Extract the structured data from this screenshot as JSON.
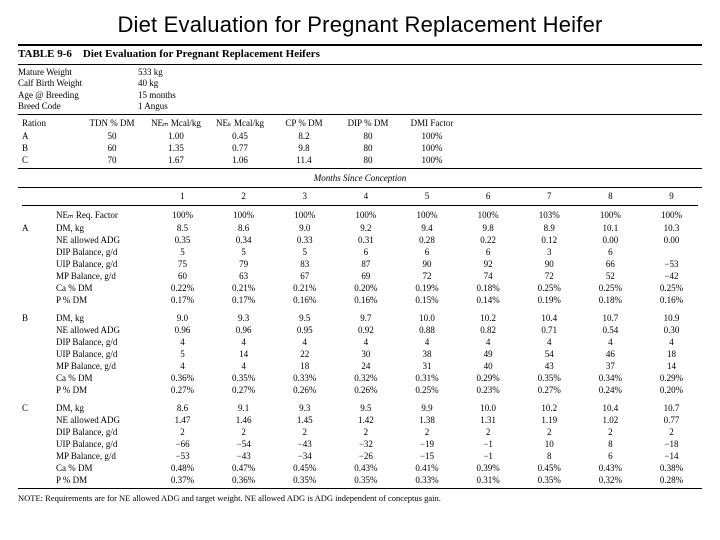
{
  "page_title": "Diet Evaluation for Pregnant Replacement Heifer",
  "table_caption": {
    "number": "TABLE 9-6",
    "text": "Diet Evaluation for Pregnant Replacement Heifers"
  },
  "meta": {
    "r0_label": "Mature Weight",
    "r0_val": "533 kg",
    "r1_label": "Calf Birth Weight",
    "r1_val": "40 kg",
    "r2_label": "Age @ Breeding",
    "r2_val": "15 months",
    "r3_label": "Breed Code",
    "r3_val": "1 Angus"
  },
  "ration_head": {
    "c0": "Ration",
    "c1": "TDN\n% DM",
    "c2": "NEₘ\nMcal/kg",
    "c3": "NEₖ\nMcal/kg",
    "c4": "CP\n% DM",
    "c5": "DIP\n% DM",
    "c6": "DMI\nFactor"
  },
  "rations": {
    "A": {
      "tdn": "50",
      "nem": "1.00",
      "neg": "0.45",
      "cp": "8.2",
      "dip": "80",
      "dmi": "100%"
    },
    "B": {
      "tdn": "60",
      "nem": "1.35",
      "neg": "0.77",
      "cp": "9.8",
      "dip": "80",
      "dmi": "100%"
    },
    "C": {
      "tdn": "70",
      "nem": "1.67",
      "neg": "1.06",
      "cp": "11.4",
      "dip": "80",
      "dmi": "100%"
    }
  },
  "months_header": "Months Since Conception",
  "month_cols": [
    "1",
    "2",
    "3",
    "4",
    "5",
    "6",
    "7",
    "8",
    "9"
  ],
  "nem_req_label": "NEₘ Req. Factor",
  "nem_req": [
    "100%",
    "100%",
    "100%",
    "100%",
    "100%",
    "100%",
    "103%",
    "100%",
    "100%"
  ],
  "row_labels": {
    "dm": "DM, kg",
    "adg": "NE allowed ADG",
    "dip": "DIP Balance, g/d",
    "uip": "UIP Balance, g/d",
    "mp": "MP Balance, g/d",
    "ca": "Ca % DM",
    "p": "P % DM"
  },
  "groups": {
    "A": {
      "dm": [
        "8.5",
        "8.6",
        "9.0",
        "9.2",
        "9.4",
        "9.8",
        "8.9",
        "10.1",
        "10.3"
      ],
      "adg": [
        "0.35",
        "0.34",
        "0.33",
        "0.31",
        "0.28",
        "0.22",
        "0.12",
        "0.00",
        "0.00"
      ],
      "dip": [
        "5",
        "5",
        "5",
        "6",
        "6",
        "6",
        "3",
        "6",
        ""
      ],
      "uip": [
        "75",
        "79",
        "83",
        "87",
        "90",
        "92",
        "90",
        "66",
        "−53"
      ],
      "mp": [
        "60",
        "63",
        "67",
        "69",
        "72",
        "74",
        "72",
        "52",
        "−42"
      ],
      "ca": [
        "0.22%",
        "0.21%",
        "0.21%",
        "0.20%",
        "0.19%",
        "0.18%",
        "0.25%",
        "0.25%",
        "0.25%"
      ],
      "p": [
        "0.17%",
        "0.17%",
        "0.16%",
        "0.16%",
        "0.15%",
        "0.14%",
        "0.19%",
        "0.18%",
        "0.16%"
      ]
    },
    "B": {
      "dm": [
        "9.0",
        "9.3",
        "9.5",
        "9.7",
        "10.0",
        "10.2",
        "10.4",
        "10.7",
        "10.9"
      ],
      "adg": [
        "0.96",
        "0.96",
        "0.95",
        "0.92",
        "0.88",
        "0.82",
        "0.71",
        "0.54",
        "0.30"
      ],
      "dip": [
        "4",
        "4",
        "4",
        "4",
        "4",
        "4",
        "4",
        "4",
        "4"
      ],
      "uip": [
        "5",
        "14",
        "22",
        "30",
        "38",
        "49",
        "54",
        "46",
        "18"
      ],
      "mp": [
        "4",
        "4",
        "18",
        "24",
        "31",
        "40",
        "43",
        "37",
        "14"
      ],
      "ca": [
        "0.36%",
        "0.35%",
        "0.33%",
        "0.32%",
        "0.31%",
        "0.29%",
        "0.35%",
        "0.34%",
        "0.29%"
      ],
      "p": [
        "0.27%",
        "0.27%",
        "0.26%",
        "0.26%",
        "0.25%",
        "0.23%",
        "0.27%",
        "0.24%",
        "0.20%"
      ]
    },
    "C": {
      "dm": [
        "8.6",
        "9.1",
        "9.3",
        "9.5",
        "9.9",
        "10.0",
        "10.2",
        "10.4",
        "10.7"
      ],
      "adg": [
        "1.47",
        "1.46",
        "1.45",
        "1.42",
        "1.38",
        "1.31",
        "1.19",
        "1.02",
        "0.77"
      ],
      "dip": [
        "2",
        "2",
        "2",
        "2",
        "2",
        "2",
        "2",
        "2",
        "2"
      ],
      "uip": [
        "−66",
        "−54",
        "−43",
        "−32",
        "−19",
        "−1",
        "10",
        "8",
        "−18"
      ],
      "mp": [
        "−53",
        "−43",
        "−34",
        "−26",
        "−15",
        "−1",
        "8",
        "6",
        "−14"
      ],
      "ca": [
        "0.48%",
        "0.47%",
        "0.45%",
        "0.43%",
        "0.41%",
        "0.39%",
        "0.45%",
        "0.43%",
        "0.38%"
      ],
      "p": [
        "0.37%",
        "0.36%",
        "0.35%",
        "0.35%",
        "0.33%",
        "0.31%",
        "0.35%",
        "0.32%",
        "0.28%"
      ]
    }
  },
  "note": "NOTE: Requirements are for NE allowed ADG and target weight. NE allowed ADG is ADG independent of conceptus gain."
}
